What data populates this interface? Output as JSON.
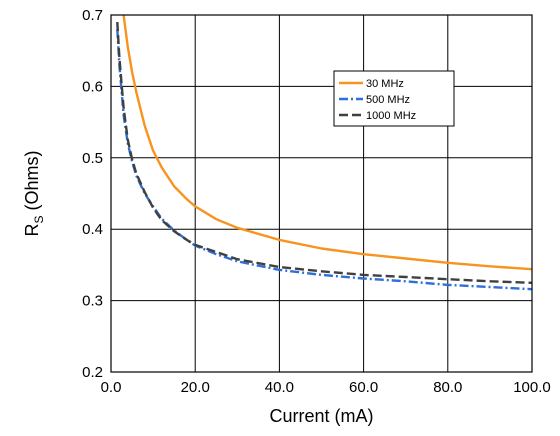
{
  "chart_data": {
    "type": "line",
    "title": "",
    "xlabel": "Current (mA)",
    "ylabel_main": "R",
    "ylabel_sub": "S",
    "ylabel_rest": " (Ohms)",
    "xlim": [
      0,
      100
    ],
    "ylim": [
      0.2,
      0.7
    ],
    "x_ticks": [
      {
        "value": 0,
        "label": "0.0"
      },
      {
        "value": 20,
        "label": "20.0"
      },
      {
        "value": 40,
        "label": "40.0"
      },
      {
        "value": 60,
        "label": "60.0"
      },
      {
        "value": 80,
        "label": "80.0"
      },
      {
        "value": 100,
        "label": "100.0"
      }
    ],
    "y_ticks": [
      {
        "value": 0.2,
        "label": "0.2"
      },
      {
        "value": 0.3,
        "label": "0.3"
      },
      {
        "value": 0.4,
        "label": "0.4"
      },
      {
        "value": 0.5,
        "label": "0.5"
      },
      {
        "value": 0.6,
        "label": "0.6"
      },
      {
        "value": 0.7,
        "label": "0.7"
      }
    ],
    "grid": true,
    "legend_position": "top-right",
    "series": [
      {
        "name": "30 MHz",
        "color": "#F7931E",
        "dash": "solid",
        "x": [
          3.0,
          4.0,
          5.0,
          6.0,
          8.0,
          10.0,
          12.0,
          15.0,
          18.0,
          20.0,
          25.0,
          30.0,
          40.0,
          50.0,
          60.0,
          70.0,
          80.0,
          90.0,
          100.0
        ],
        "y": [
          0.7,
          0.655,
          0.62,
          0.592,
          0.545,
          0.51,
          0.487,
          0.46,
          0.442,
          0.432,
          0.414,
          0.402,
          0.385,
          0.373,
          0.365,
          0.359,
          0.353,
          0.348,
          0.344
        ]
      },
      {
        "name": "500 MHz",
        "color": "#2E6FD9",
        "dash": "dashdot",
        "x": [
          1.5,
          2.0,
          3.0,
          4.0,
          5.0,
          6.0,
          8.0,
          10.0,
          12.0,
          15.0,
          18.0,
          20.0,
          25.0,
          30.0,
          40.0,
          50.0,
          60.0,
          70.0,
          80.0,
          90.0,
          100.0
        ],
        "y": [
          0.68,
          0.63,
          0.56,
          0.52,
          0.495,
          0.475,
          0.45,
          0.432,
          0.415,
          0.398,
          0.385,
          0.377,
          0.365,
          0.355,
          0.343,
          0.336,
          0.331,
          0.327,
          0.322,
          0.319,
          0.316
        ]
      },
      {
        "name": "1000 MHz",
        "color": "#404040",
        "dash": "dashed",
        "x": [
          1.5,
          2.0,
          3.0,
          4.0,
          5.0,
          6.0,
          8.0,
          10.0,
          12.0,
          15.0,
          18.0,
          20.0,
          25.0,
          30.0,
          40.0,
          50.0,
          60.0,
          70.0,
          80.0,
          90.0,
          100.0
        ],
        "y": [
          0.69,
          0.64,
          0.57,
          0.525,
          0.498,
          0.478,
          0.452,
          0.43,
          0.413,
          0.397,
          0.385,
          0.378,
          0.368,
          0.358,
          0.347,
          0.341,
          0.336,
          0.333,
          0.33,
          0.327,
          0.325
        ]
      }
    ]
  }
}
